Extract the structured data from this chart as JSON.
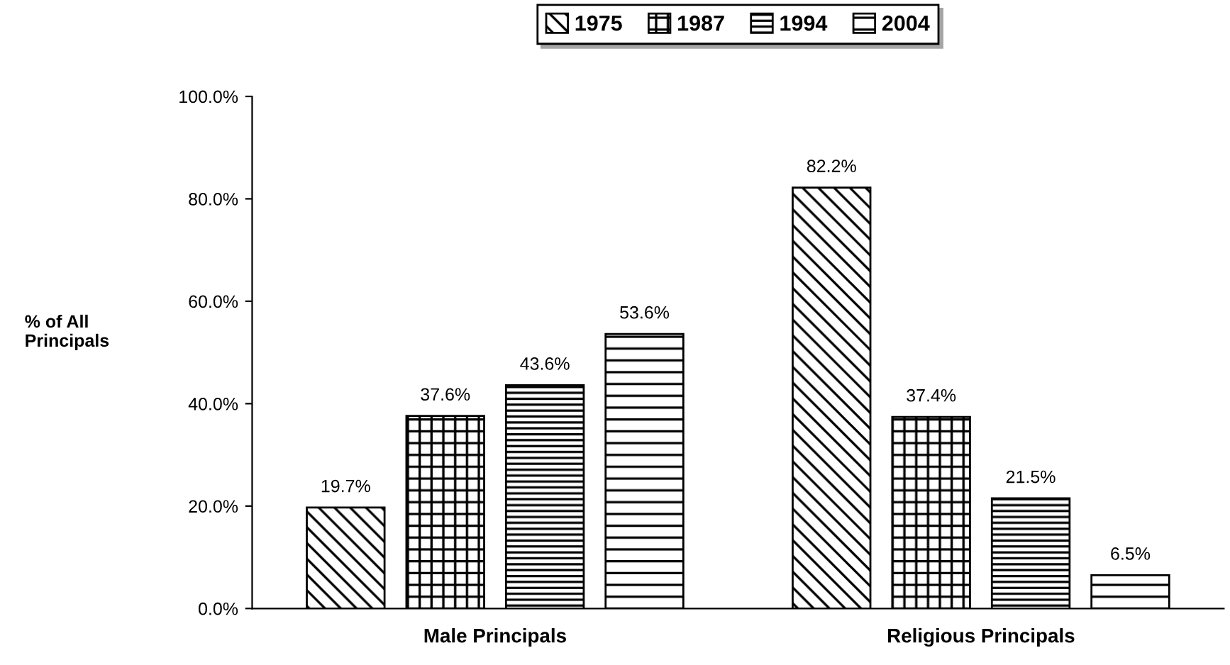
{
  "chart_data": {
    "type": "bar",
    "ylabel": "% of All\nPrincipals",
    "categories": [
      "Male Principals",
      "Religious Principals"
    ],
    "series": [
      {
        "name": "1975",
        "color": "#000000",
        "values": [
          19.7,
          82.2
        ],
        "value_labels": [
          "19.7%",
          "82.2%"
        ]
      },
      {
        "name": "1987",
        "color": "#000000",
        "values": [
          37.6,
          37.4
        ],
        "value_labels": [
          "37.6%",
          "37.4%"
        ]
      },
      {
        "name": "1994",
        "color": "#000000",
        "values": [
          43.6,
          21.5
        ],
        "value_labels": [
          "43.6%",
          "21.5%"
        ]
      },
      {
        "name": "2004",
        "color": "#000000",
        "values": [
          53.6,
          6.5
        ],
        "value_labels": [
          "53.6%",
          "6.5%"
        ]
      }
    ],
    "ylim": [
      0,
      100
    ],
    "yticks": [
      {
        "value": 0,
        "label": "0.0%"
      },
      {
        "value": 20,
        "label": "20.0%"
      },
      {
        "value": 40,
        "label": "40.0%"
      },
      {
        "value": 60,
        "label": "60.0%"
      },
      {
        "value": 80,
        "label": "80.0%"
      },
      {
        "value": 100,
        "label": "100.0%"
      }
    ],
    "grid": false,
    "legend": "top"
  }
}
